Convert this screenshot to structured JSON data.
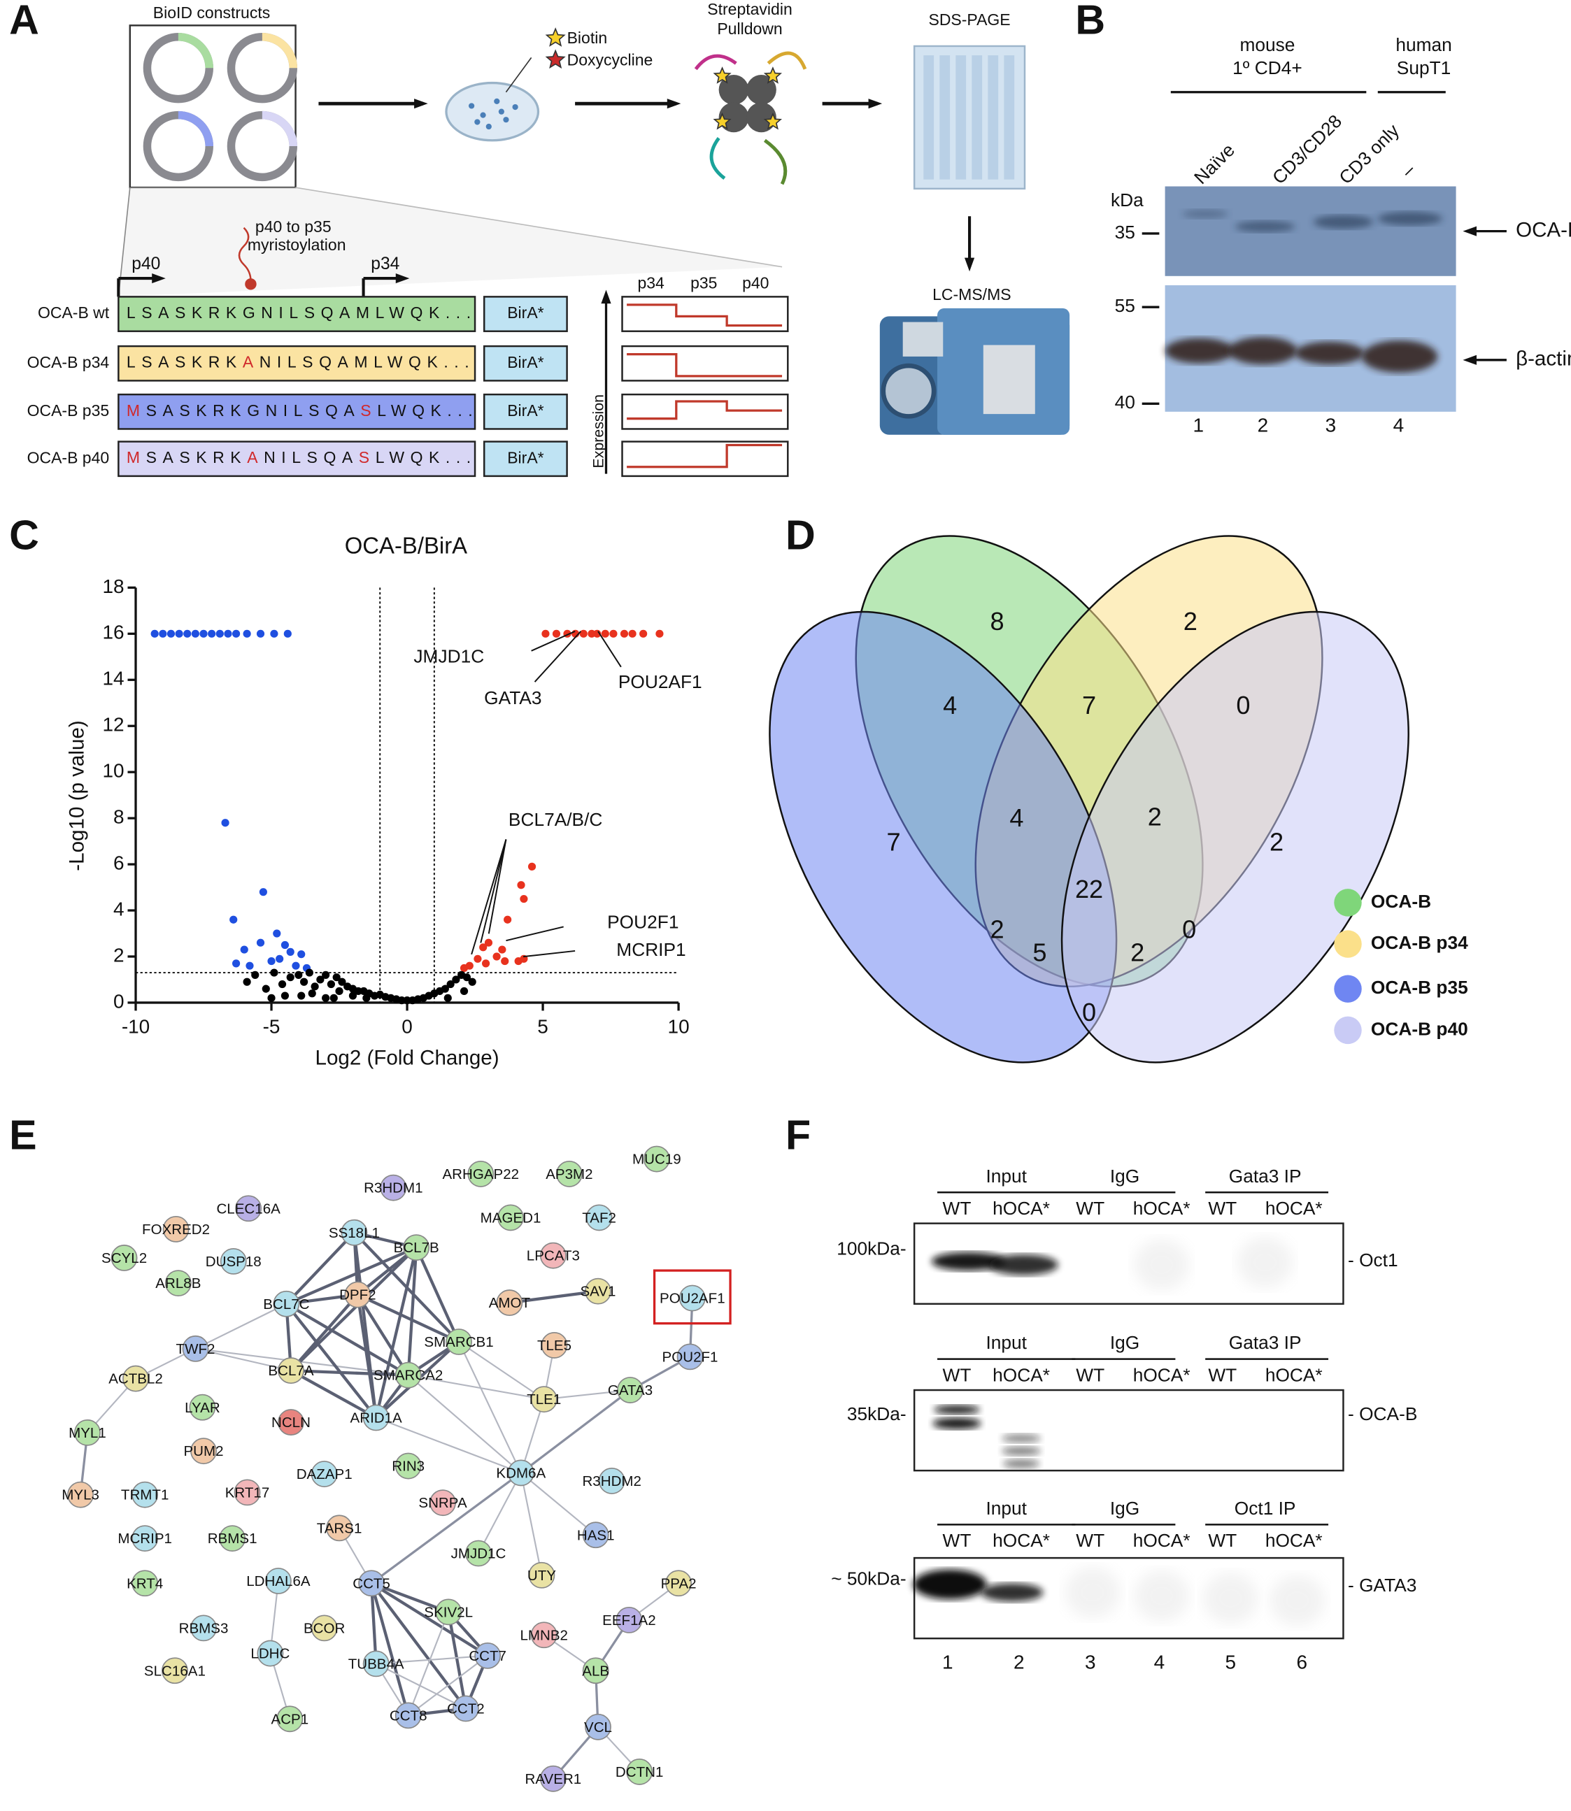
{
  "panel_labels": [
    "A",
    "B",
    "C",
    "D",
    "E",
    "F"
  ],
  "panel_a": {
    "constructs_title": "BioID constructs",
    "reagents": [
      "Biotin",
      "Doxycycline"
    ],
    "pulldown": [
      "Streptavidin",
      "Pulldown"
    ],
    "gel": "SDS-PAGE",
    "ms": "LC-MS/MS",
    "site": [
      "p40 to p35",
      "myristoylation"
    ],
    "starts": [
      "p40",
      "p34"
    ],
    "constructs": [
      {
        "name": "OCA-B wt",
        "color": "#a9dca0",
        "tag": "BirA*",
        "sequence": [
          {
            "text": "LSASKRKGNILSQAMLWQK..."
          }
        ]
      },
      {
        "name": "OCA-B p34",
        "color": "#fbe3a2",
        "tag": "BirA*",
        "sequence": [
          {
            "text": "LSASKRK"
          },
          {
            "text": "A",
            "mutated": true
          },
          {
            "text": "NILSQAMLWQK..."
          }
        ]
      },
      {
        "name": "OCA-B p35",
        "color": "#8f9ff0",
        "tag": "BirA*",
        "sequence": [
          {
            "text": "M",
            "mutated": true
          },
          {
            "text": "SASKRKGNILSQA"
          },
          {
            "text": "S",
            "mutated": true
          },
          {
            "text": "LWQK..."
          }
        ]
      },
      {
        "name": "OCA-B p40",
        "color": "#d8d6f5",
        "tag": "BirA*",
        "sequence": [
          {
            "text": "M",
            "mutated": true
          },
          {
            "text": "SASKRK"
          },
          {
            "text": "A",
            "mutated": true
          },
          {
            "text": "NILSQA"
          },
          {
            "text": "S",
            "mutated": true
          },
          {
            "text": "LWQK..."
          }
        ]
      }
    ],
    "isoforms": [
      "p34",
      "p35",
      "p40"
    ],
    "expression_label": "Expression"
  },
  "panel_b": {
    "groups": [
      {
        "lines": [
          "mouse",
          "1º CD4+"
        ]
      },
      {
        "lines": [
          "human",
          "SupT1"
        ]
      }
    ],
    "lanes": [
      "Naïve",
      "CD3/CD28",
      "CD3 only",
      "–"
    ],
    "unit": "kDa",
    "markers": [
      35,
      55,
      40
    ],
    "targets": [
      "OCA-B",
      "β-actin"
    ],
    "lane_numbers": [
      1,
      2,
      3,
      4
    ]
  },
  "chart_data": {
    "type": "scatter",
    "title": "OCA-B/BirA",
    "x_label": "Log2 (Fold Change)",
    "y_label": "-Log10 (p value)",
    "xlim": [
      -10,
      10
    ],
    "xticks": [
      -10,
      -5,
      0,
      5,
      10
    ],
    "ylim": [
      0,
      18
    ],
    "yticks": [
      0,
      2,
      4,
      6,
      8,
      10,
      12,
      14,
      16,
      18
    ],
    "thresholds": {
      "x": [
        -1,
        1
      ],
      "y": 1.3
    },
    "series": [
      {
        "color": "#1f4fe0",
        "x": [
          -9.3,
          -9.0,
          -8.7,
          -8.4,
          -8.1,
          -7.8,
          -7.5,
          -7.2,
          -6.9,
          -6.6,
          -6.3,
          -5.9,
          -5.4,
          -4.9,
          -4.4,
          -6.7,
          -5.3,
          -6.4,
          -4.8,
          -5.4,
          -6.0,
          -4.5,
          -5.8,
          -5.0,
          -4.3,
          -3.9,
          -3.7,
          -4.1,
          -6.3,
          -4.7
        ],
        "values": [
          16,
          16,
          16,
          16,
          16,
          16,
          16,
          16,
          16,
          16,
          16,
          16,
          16,
          16,
          16,
          7.8,
          4.8,
          3.6,
          3.0,
          2.6,
          2.3,
          2.5,
          1.6,
          1.8,
          2.2,
          2.1,
          1.5,
          1.6,
          1.7,
          1.9
        ]
      },
      {
        "color": "#e8321e",
        "x": [
          5.1,
          5.5,
          5.9,
          6.2,
          6.5,
          6.8,
          7.0,
          7.3,
          7.6,
          8.0,
          8.3,
          8.7,
          9.3,
          4.6,
          4.2,
          4.3,
          3.7,
          3.0,
          3.5,
          3.3,
          2.6,
          2.9,
          4.1,
          4.3,
          2.3,
          2.1,
          3.6,
          2.8
        ],
        "values": [
          16,
          16,
          16,
          16,
          16,
          16,
          16,
          16,
          16,
          16,
          16,
          16,
          16,
          5.9,
          5.1,
          4.5,
          3.6,
          2.6,
          2.3,
          2.0,
          1.9,
          1.7,
          1.8,
          1.9,
          1.6,
          1.5,
          1.8,
          2.4
        ]
      },
      {
        "color": "#000000",
        "x": [
          -5.9,
          -5.6,
          -5.2,
          -4.9,
          -4.6,
          -4.3,
          -4.0,
          -3.8,
          -3.6,
          -3.4,
          -3.2,
          -3.0,
          -2.8,
          -2.6,
          -2.4,
          -2.2,
          -2.0,
          -1.8,
          -1.6,
          -1.4,
          -1.2,
          -1.0,
          -0.8,
          -0.6,
          -0.4,
          -0.2,
          0,
          0.2,
          0.4,
          0.6,
          0.8,
          1.0,
          1.2,
          1.4,
          1.6,
          1.8,
          2.0,
          2.2,
          2.4,
          -4.5,
          -3.5,
          -2.5,
          -3.0,
          -2.0,
          1.5,
          2.1,
          -5.0,
          -3.9,
          -2.7,
          -1.5
        ],
        "values": [
          0.9,
          1.2,
          0.6,
          1.3,
          0.8,
          1.1,
          1.2,
          0.9,
          1.3,
          0.7,
          1.0,
          1.2,
          0.8,
          1.1,
          0.9,
          0.7,
          0.6,
          0.5,
          0.5,
          0.4,
          0.3,
          0.35,
          0.25,
          0.2,
          0.15,
          0.1,
          0.1,
          0.1,
          0.15,
          0.2,
          0.3,
          0.4,
          0.5,
          0.6,
          0.8,
          1.0,
          1.2,
          1.1,
          0.9,
          0.3,
          0.4,
          0.5,
          0.2,
          0.3,
          0.2,
          0.5,
          0.2,
          0.3,
          0.2,
          0.2
        ]
      }
    ],
    "annotations": [
      "JMJD1C",
      "GATA3",
      "POU2AF1",
      "BCL7A/B/C",
      "POU2F1",
      "MCRIP1"
    ]
  },
  "panel_d": {
    "counts": [
      8,
      2,
      4,
      7,
      0,
      7,
      4,
      2,
      2,
      22,
      2,
      0,
      5,
      2,
      0
    ],
    "sets": [
      {
        "name": "OCA-B",
        "color": "#7fd67a"
      },
      {
        "name": "OCA-B p34",
        "color": "#fbe08a"
      },
      {
        "name": "OCA-B p35",
        "color": "#6f86f2"
      },
      {
        "name": "OCA-B p40",
        "color": "#c9cbf5"
      }
    ]
  },
  "panel_e": {
    "nodes": [
      {
        "label": "MUC19",
        "color": "#b5e3a8"
      },
      {
        "label": "R3HDM1",
        "color": "#b9b0e6"
      },
      {
        "label": "ARHGAP22",
        "color": "#b5e3a8"
      },
      {
        "label": "AP3M2",
        "color": "#b5e3a8"
      },
      {
        "label": "CLEC16A",
        "color": "#b9b0e6"
      },
      {
        "label": "FOXRED2",
        "color": "#f1c9a8"
      },
      {
        "label": "MAGED1",
        "color": "#b5e3a8"
      },
      {
        "label": "TAF2",
        "color": "#b4e0ec"
      },
      {
        "label": "SCYL2",
        "color": "#b5e3a8"
      },
      {
        "label": "DUSP18",
        "color": "#b4e0ec"
      },
      {
        "label": "SS18L1",
        "color": "#b4e0ec"
      },
      {
        "label": "BCL7B",
        "color": "#b5e3a8"
      },
      {
        "label": "ARL8B",
        "color": "#b5e3a8"
      },
      {
        "label": "LPCAT3",
        "color": "#f2b6b9"
      },
      {
        "label": "SAV1",
        "color": "#e9e2a4"
      },
      {
        "label": "AMOT",
        "color": "#f1c9a8"
      },
      {
        "label": "POU2AF1",
        "color": "#b4e0ec",
        "highlight": true
      },
      {
        "label": "BCL7C",
        "color": "#b4e0ec"
      },
      {
        "label": "DPF2",
        "color": "#f1c9a8"
      },
      {
        "label": "SMARCB1",
        "color": "#b5e3a8"
      },
      {
        "label": "TLE5",
        "color": "#f1c9a8"
      },
      {
        "label": "POU2F1",
        "color": "#a9bfe8"
      },
      {
        "label": "TWF2",
        "color": "#a9bfe8"
      },
      {
        "label": "ACTBL2",
        "color": "#e9e2a4"
      },
      {
        "label": "BCL7A",
        "color": "#e9e2a4"
      },
      {
        "label": "SMARCA2",
        "color": "#b5e3a8"
      },
      {
        "label": "TLE1",
        "color": "#e9e2a4"
      },
      {
        "label": "GATA3",
        "color": "#b5e3a8"
      },
      {
        "label": "LYAR",
        "color": "#b5e3a8"
      },
      {
        "label": "ARID1A",
        "color": "#b4e0ec"
      },
      {
        "label": "NCLN",
        "color": "#e8847f"
      },
      {
        "label": "MYL1",
        "color": "#b5e3a8"
      },
      {
        "label": "PUM2",
        "color": "#f1c9a8"
      },
      {
        "label": "KDM6A",
        "color": "#b4e0ec"
      },
      {
        "label": "DAZAP1",
        "color": "#b4e0ec"
      },
      {
        "label": "RIN3",
        "color": "#b5e3a8"
      },
      {
        "label": "R3HDM2",
        "color": "#b4e0ec"
      },
      {
        "label": "KRT17",
        "color": "#f2b6b9"
      },
      {
        "label": "MYL3",
        "color": "#f1c9a8"
      },
      {
        "label": "TRMT1",
        "color": "#b4e0ec"
      },
      {
        "label": "SNRPA",
        "color": "#f2b6b9"
      },
      {
        "label": "TARS1",
        "color": "#f1c9a8"
      },
      {
        "label": "MCRIP1",
        "color": "#b4e0ec"
      },
      {
        "label": "RBMS1",
        "color": "#b5e3a8"
      },
      {
        "label": "HAS1",
        "color": "#a9bfe8"
      },
      {
        "label": "JMJD1C",
        "color": "#b5e3a8"
      },
      {
        "label": "UTY",
        "color": "#e9e2a4"
      },
      {
        "label": "KRT4",
        "color": "#b5e3a8"
      },
      {
        "label": "LDHAL6A",
        "color": "#b4e0ec"
      },
      {
        "label": "CCT5",
        "color": "#a9bfe8"
      },
      {
        "label": "SKIV2L",
        "color": "#b5e3a8"
      },
      {
        "label": "PPA2",
        "color": "#e9e2a4"
      },
      {
        "label": "BCOR",
        "color": "#e9e2a4"
      },
      {
        "label": "EEF1A2",
        "color": "#b9b0e6"
      },
      {
        "label": "RBMS3",
        "color": "#b4e0ec"
      },
      {
        "label": "LMNB2",
        "color": "#f2b6b9"
      },
      {
        "label": "CCT7",
        "color": "#a9bfe8"
      },
      {
        "label": "TUBB4A",
        "color": "#b4e0ec"
      },
      {
        "label": "LDHC",
        "color": "#b4e0ec"
      },
      {
        "label": "ALB",
        "color": "#b5e3a8"
      },
      {
        "label": "SLC16A1",
        "color": "#e9e2a4"
      },
      {
        "label": "CCT2",
        "color": "#a9bfe8"
      },
      {
        "label": "CCT8",
        "color": "#a9bfe8"
      },
      {
        "label": "ACP1",
        "color": "#b5e3a8"
      },
      {
        "label": "VCL",
        "color": "#a9bfe8"
      },
      {
        "label": "DCTN1",
        "color": "#b5e3a8"
      },
      {
        "label": "RAVER1",
        "color": "#b9b0e6"
      }
    ]
  },
  "panel_f": {
    "blots": [
      {
        "groups": [
          "Input",
          "IgG",
          "Gata3 IP"
        ],
        "lanes": [
          "WT",
          "hOCA*",
          "WT",
          "hOCA*",
          "WT",
          "hOCA*"
        ],
        "marker": "100kDa-",
        "target": "- Oct1"
      },
      {
        "groups": [
          "Input",
          "IgG",
          "Gata3 IP"
        ],
        "lanes": [
          "WT",
          "hOCA*",
          "WT",
          "hOCA*",
          "WT",
          "hOCA*"
        ],
        "marker": "35kDa-",
        "target": "- OCA-B"
      },
      {
        "groups": [
          "Input",
          "IgG",
          "Oct1 IP"
        ],
        "lanes": [
          "WT",
          "hOCA*",
          "WT",
          "hOCA*",
          "WT",
          "hOCA*"
        ],
        "marker": "~ 50kDa-",
        "target": "- GATA3"
      }
    ],
    "lane_numbers": [
      1,
      2,
      3,
      4,
      5,
      6
    ]
  }
}
